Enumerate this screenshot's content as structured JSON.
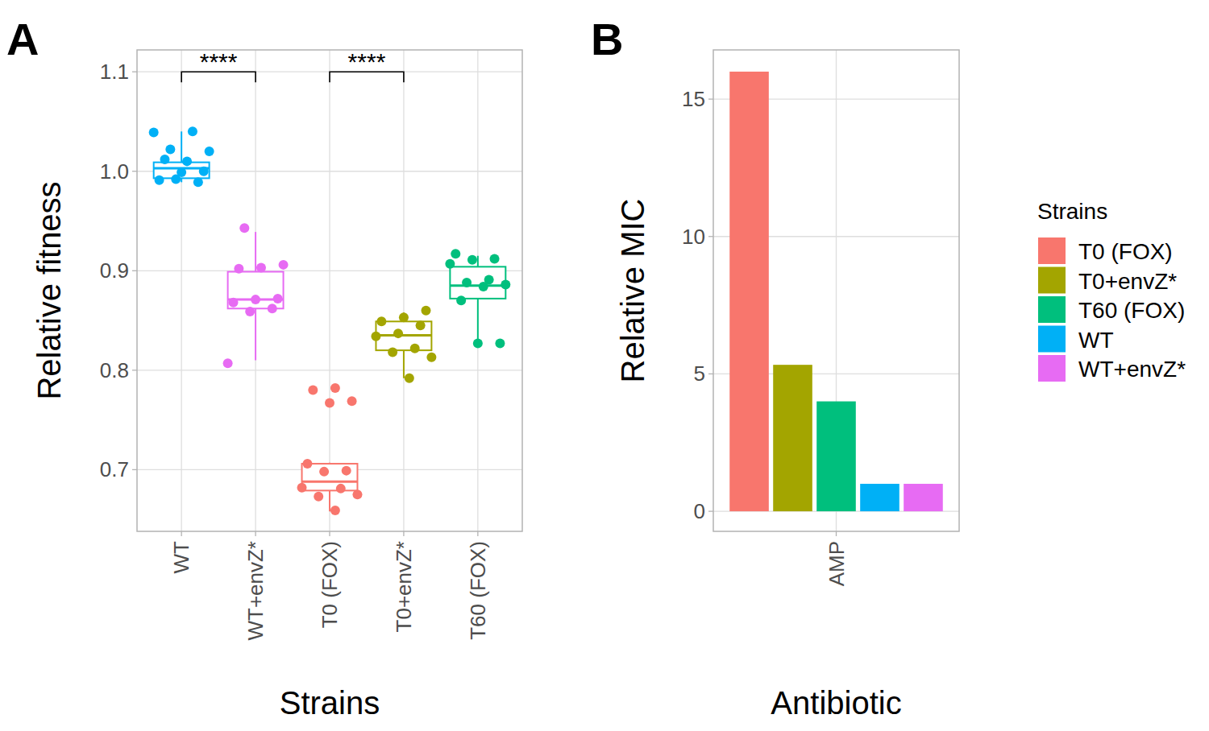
{
  "chart_data": [
    {
      "type": "box",
      "title": "A",
      "x_label": "Strains",
      "y_label": "Relative fitness",
      "categories": [
        "WT",
        "WT+envZ*",
        "T0 (FOX)",
        "T0+envZ*",
        "T60 (FOX)"
      ],
      "colors": [
        "#00B0F6",
        "#E76BF3",
        "#F8766D",
        "#A3A500",
        "#00BF7D"
      ],
      "boxes": [
        {
          "min": 0.989,
          "q1": 0.993,
          "median": 1.003,
          "q3": 1.009,
          "max": 1.04
        },
        {
          "min": 0.81,
          "q1": 0.862,
          "median": 0.871,
          "q3": 0.899,
          "max": 0.939
        },
        {
          "min": 0.658,
          "q1": 0.679,
          "median": 0.688,
          "q3": 0.706,
          "max": 0.707
        },
        {
          "min": 0.792,
          "q1": 0.82,
          "median": 0.835,
          "q3": 0.849,
          "max": 0.858
        },
        {
          "min": 0.829,
          "q1": 0.872,
          "median": 0.885,
          "q3": 0.904,
          "max": 0.915
        }
      ],
      "points": [
        [
          1.039,
          1.04,
          1.022,
          1.02,
          1.01,
          1.012,
          1.0,
          0.999,
          0.991,
          0.989,
          0.992
        ],
        [
          0.943,
          0.906,
          0.903,
          0.902,
          0.872,
          0.871,
          0.868,
          0.862,
          0.859,
          0.807
        ],
        [
          0.782,
          0.78,
          0.769,
          0.767,
          0.706,
          0.699,
          0.698,
          0.682,
          0.681,
          0.673,
          0.675,
          0.659
        ],
        [
          0.86,
          0.853,
          0.849,
          0.845,
          0.837,
          0.834,
          0.822,
          0.818,
          0.813,
          0.792
        ],
        [
          0.917,
          0.912,
          0.911,
          0.907,
          0.891,
          0.888,
          0.886,
          0.884,
          0.87,
          0.827,
          0.827
        ]
      ],
      "ylim": [
        0.638,
        1.122
      ],
      "yticks": [
        0.7,
        0.8,
        0.9,
        {
          "value": 1,
          "label": "1.0"
        },
        1.1
      ],
      "grid": true,
      "annotations": [
        {
          "text": "****",
          "x1": 0,
          "x2": 1,
          "y": 1.1
        },
        {
          "text": "****",
          "x1": 2,
          "x2": 3,
          "y": 1.1
        }
      ]
    },
    {
      "type": "bar",
      "title": "B",
      "x_label": "Antibiotic",
      "y_label": "Relative MIC",
      "categories": [
        "AMP"
      ],
      "series": [
        {
          "name": "T0 (FOX)",
          "color": "#F8766D",
          "values": [
            16
          ]
        },
        {
          "name": "T0+envZ*",
          "color": "#A3A500",
          "values": [
            5.33
          ]
        },
        {
          "name": "T60 (FOX)",
          "color": "#00BF7D",
          "values": [
            4
          ]
        },
        {
          "name": "WT",
          "color": "#00B0F6",
          "values": [
            1
          ]
        },
        {
          "name": "WT+envZ*",
          "color": "#E76BF3",
          "values": [
            1
          ]
        }
      ],
      "ylim": [
        -0.73,
        16.79
      ],
      "yticks": [
        0,
        5,
        10,
        15
      ],
      "grid": true,
      "legend": "right",
      "legend_title": "Strains"
    }
  ]
}
